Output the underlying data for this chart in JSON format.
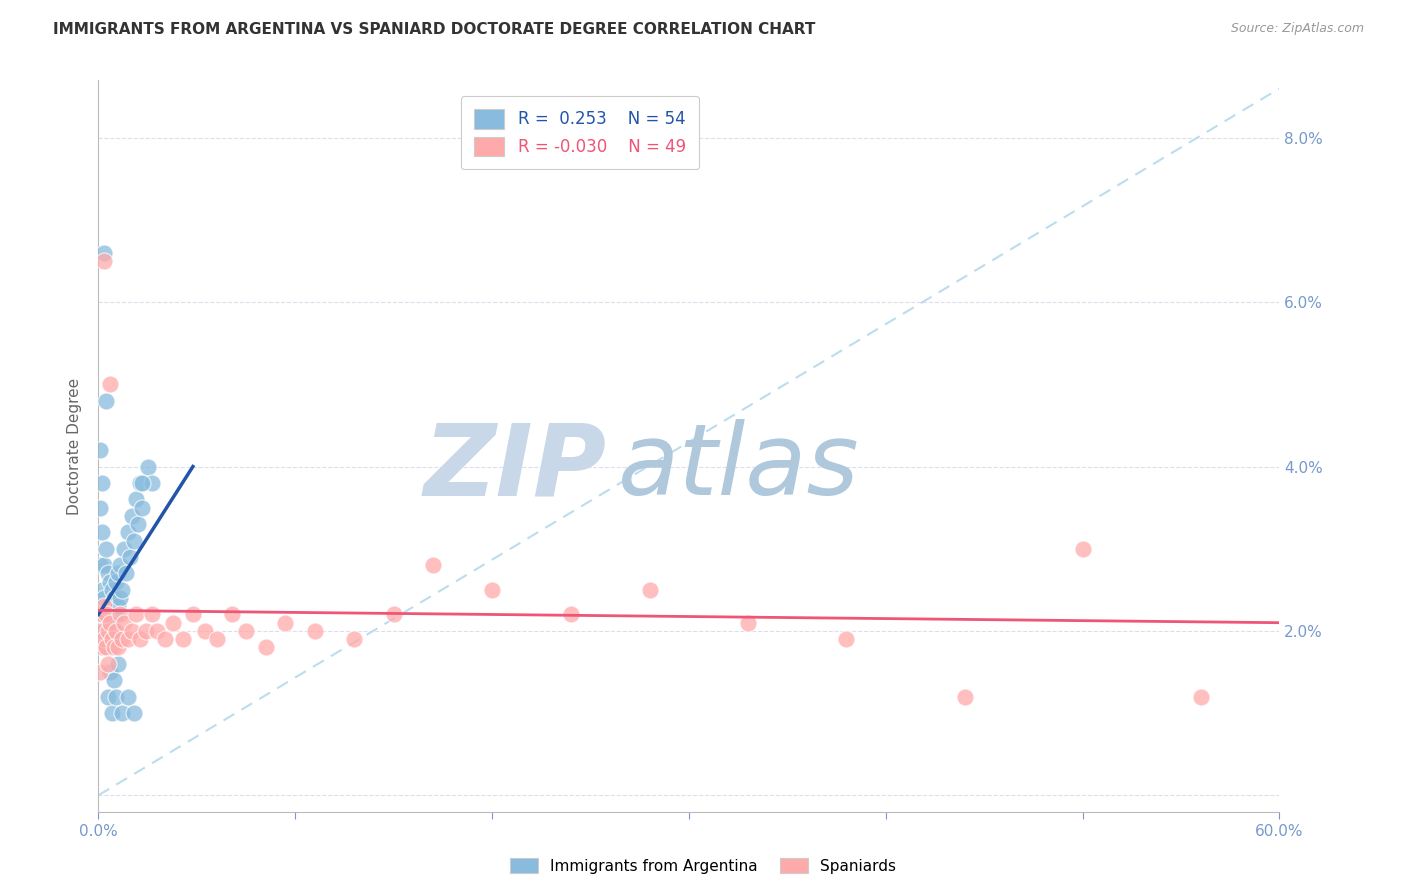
{
  "title": "IMMIGRANTS FROM ARGENTINA VS SPANIARD DOCTORATE DEGREE CORRELATION CHART",
  "source": "Source: ZipAtlas.com",
  "ylabel": "Doctorate Degree",
  "xlim": [
    0.0,
    0.6
  ],
  "ylim": [
    -0.002,
    0.087
  ],
  "xtick_positions": [
    0.0,
    0.1,
    0.2,
    0.3,
    0.4,
    0.5,
    0.6
  ],
  "xticklabels": [
    "0.0%",
    "",
    "",
    "",
    "",
    "",
    "60.0%"
  ],
  "ytick_positions": [
    0.0,
    0.02,
    0.04,
    0.06,
    0.08
  ],
  "yticklabels_right": [
    "",
    "2.0%",
    "4.0%",
    "6.0%",
    "8.0%"
  ],
  "legend_blue_r": "R =  0.253",
  "legend_blue_n": "N = 54",
  "legend_pink_r": "R = -0.030",
  "legend_pink_n": "N = 49",
  "blue_color": "#88BBDD",
  "pink_color": "#FFAAAA",
  "blue_line_color": "#2255AA",
  "pink_line_color": "#EE5577",
  "diag_line_color": "#BBDDEE",
  "grid_color": "#DDDDEE",
  "watermark_zip": "ZIP",
  "watermark_atlas": "atlas",
  "watermark_color_zip": "#C8D8E8",
  "watermark_color_atlas": "#B0C8DC",
  "title_fontsize": 11,
  "axis_color": "#7799CC",
  "blue_scatter_x": [
    0.001,
    0.001,
    0.002,
    0.002,
    0.002,
    0.003,
    0.003,
    0.003,
    0.004,
    0.004,
    0.004,
    0.005,
    0.005,
    0.005,
    0.006,
    0.006,
    0.006,
    0.007,
    0.007,
    0.008,
    0.008,
    0.009,
    0.009,
    0.01,
    0.01,
    0.011,
    0.011,
    0.012,
    0.013,
    0.014,
    0.015,
    0.016,
    0.017,
    0.018,
    0.019,
    0.02,
    0.021,
    0.022,
    0.025,
    0.027,
    0.001,
    0.002,
    0.003,
    0.004,
    0.005,
    0.006,
    0.007,
    0.008,
    0.009,
    0.01,
    0.012,
    0.015,
    0.018,
    0.022
  ],
  "blue_scatter_y": [
    0.028,
    0.035,
    0.022,
    0.025,
    0.032,
    0.02,
    0.024,
    0.028,
    0.018,
    0.022,
    0.03,
    0.019,
    0.023,
    0.027,
    0.018,
    0.022,
    0.026,
    0.021,
    0.025,
    0.02,
    0.024,
    0.022,
    0.026,
    0.023,
    0.027,
    0.024,
    0.028,
    0.025,
    0.03,
    0.027,
    0.032,
    0.029,
    0.034,
    0.031,
    0.036,
    0.033,
    0.038,
    0.035,
    0.04,
    0.038,
    0.042,
    0.038,
    0.066,
    0.048,
    0.012,
    0.015,
    0.01,
    0.014,
    0.012,
    0.016,
    0.01,
    0.012,
    0.01,
    0.038
  ],
  "pink_scatter_x": [
    0.001,
    0.001,
    0.002,
    0.002,
    0.003,
    0.003,
    0.004,
    0.004,
    0.005,
    0.005,
    0.006,
    0.007,
    0.008,
    0.009,
    0.01,
    0.011,
    0.012,
    0.013,
    0.015,
    0.017,
    0.019,
    0.021,
    0.024,
    0.027,
    0.03,
    0.034,
    0.038,
    0.043,
    0.048,
    0.054,
    0.06,
    0.068,
    0.075,
    0.085,
    0.095,
    0.11,
    0.13,
    0.15,
    0.17,
    0.2,
    0.24,
    0.28,
    0.33,
    0.38,
    0.44,
    0.5,
    0.56,
    0.003,
    0.006
  ],
  "pink_scatter_y": [
    0.02,
    0.015,
    0.022,
    0.018,
    0.019,
    0.023,
    0.018,
    0.022,
    0.02,
    0.016,
    0.021,
    0.019,
    0.018,
    0.02,
    0.018,
    0.022,
    0.019,
    0.021,
    0.019,
    0.02,
    0.022,
    0.019,
    0.02,
    0.022,
    0.02,
    0.019,
    0.021,
    0.019,
    0.022,
    0.02,
    0.019,
    0.022,
    0.02,
    0.018,
    0.021,
    0.02,
    0.019,
    0.022,
    0.028,
    0.025,
    0.022,
    0.025,
    0.021,
    0.019,
    0.012,
    0.03,
    0.012,
    0.065,
    0.05
  ],
  "blue_line_x": [
    0.0,
    0.048
  ],
  "blue_line_y": [
    0.022,
    0.04
  ],
  "pink_line_x": [
    0.0,
    0.6
  ],
  "pink_line_y": [
    0.0225,
    0.021
  ]
}
